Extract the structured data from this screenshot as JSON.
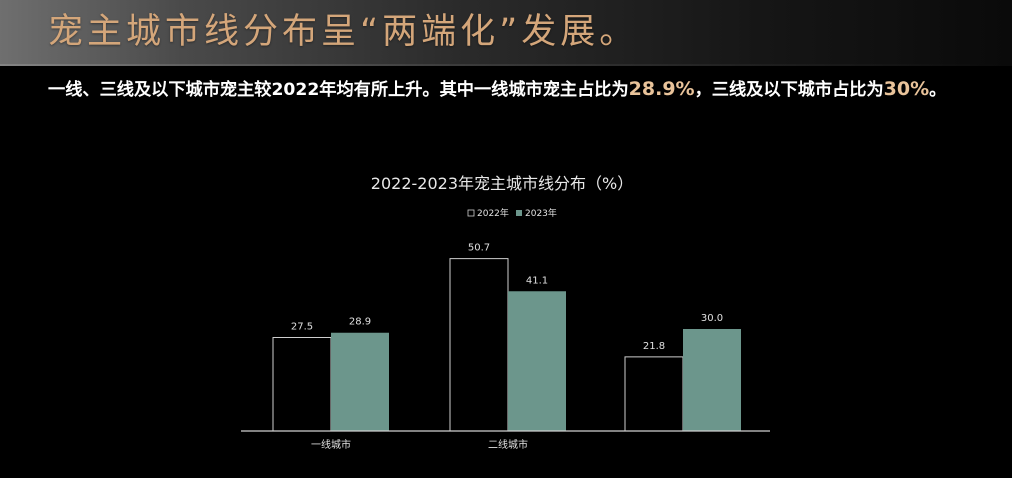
{
  "header": {
    "title": "宠主城市线分布呈“两端化”发展。"
  },
  "summary": {
    "part1": "一线、三线及以下城市宠主较2022年均有所上升。其中一线城市宠主占比为",
    "highlight1": "28.9%",
    "part2": "，三线及以下城市占比为",
    "highlight2": "30%",
    "part3": "。"
  },
  "chart_data": {
    "type": "bar",
    "title": "2022-2023年宠主城市线分布（%）",
    "categories": [
      "一线城市",
      "二线城市",
      ""
    ],
    "series": [
      {
        "name": "2022年",
        "values": [
          27.5,
          50.7,
          21.8
        ],
        "labels": [
          "27.5",
          "50.7",
          "21.8"
        ]
      },
      {
        "name": "2023年",
        "values": [
          28.9,
          41.1,
          30.0
        ],
        "labels": [
          "28.9",
          "41.1",
          "30.0"
        ]
      }
    ],
    "ylim": [
      0,
      60
    ],
    "grid": false,
    "legend_position": "top-center",
    "colors": {
      "2022年": "#000000",
      "2022年_outline": "#cfcfcf",
      "2023年": "#6c968c",
      "axis": "#cfcfcf"
    }
  }
}
